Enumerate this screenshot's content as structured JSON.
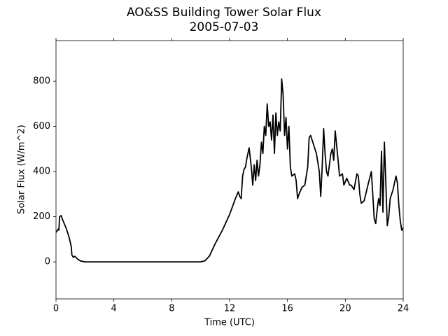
{
  "chart_data": {
    "type": "line",
    "title": "AO&SS Building Tower Solar Flux",
    "subtitle": "2005-07-03",
    "x_label": "Time (UTC)",
    "y_label": "Solar Flux (W/m^2)",
    "x": [
      0,
      0.1,
      0.15,
      0.2,
      0.25,
      0.35,
      0.5,
      0.7,
      0.9,
      1.05,
      1.1,
      1.2,
      1.3,
      1.5,
      1.7,
      2,
      4,
      6,
      8,
      10,
      10.3,
      10.6,
      11,
      11.5,
      12,
      12.4,
      12.6,
      12.7,
      12.8,
      12.9,
      13,
      13.1,
      13.2,
      13.35,
      13.5,
      13.6,
      13.7,
      13.8,
      13.9,
      14,
      14.1,
      14.2,
      14.3,
      14.4,
      14.5,
      14.6,
      14.7,
      14.8,
      14.9,
      15,
      15.1,
      15.2,
      15.3,
      15.4,
      15.5,
      15.6,
      15.7,
      15.8,
      15.9,
      16,
      16.1,
      16.2,
      16.3,
      16.5,
      16.6,
      16.7,
      16.8,
      17,
      17.2,
      17.4,
      17.5,
      17.6,
      17.8,
      18,
      18.2,
      18.3,
      18.4,
      18.5,
      18.6,
      18.7,
      18.8,
      19,
      19.1,
      19.2,
      19.3,
      19.5,
      19.6,
      19.8,
      19.9,
      20.1,
      20.3,
      20.4,
      20.6,
      20.8,
      20.9,
      21,
      21.1,
      21.3,
      21.6,
      21.8,
      22,
      22.1,
      22.2,
      22.3,
      22.4,
      22.5,
      22.6,
      22.7,
      22.8,
      22.9,
      23,
      23.1,
      23.3,
      23.5,
      23.6,
      23.7,
      23.8,
      23.9,
      24
    ],
    "series": [
      {
        "color": "#000000",
        "values": [
          130,
          140,
          145,
          140,
          200,
          205,
          180,
          150,
          110,
          70,
          30,
          20,
          25,
          12,
          4,
          0,
          0,
          0,
          0,
          0,
          5,
          25,
          80,
          140,
          210,
          280,
          310,
          290,
          280,
          380,
          410,
          420,
          460,
          505,
          420,
          340,
          430,
          360,
          450,
          380,
          430,
          530,
          480,
          600,
          560,
          700,
          600,
          620,
          540,
          650,
          480,
          660,
          560,
          620,
          580,
          810,
          740,
          560,
          640,
          500,
          600,
          420,
          380,
          390,
          360,
          280,
          300,
          330,
          340,
          420,
          550,
          560,
          520,
          480,
          400,
          290,
          420,
          590,
          480,
          400,
          380,
          480,
          500,
          450,
          580,
          450,
          380,
          390,
          340,
          370,
          340,
          340,
          320,
          390,
          380,
          300,
          260,
          270,
          350,
          400,
          190,
          170,
          230,
          280,
          250,
          490,
          220,
          530,
          350,
          160,
          200,
          280,
          320,
          380,
          350,
          250,
          180,
          140,
          150
        ]
      }
    ],
    "xlim": [
      0,
      24
    ],
    "xticks": [
      0,
      4,
      8,
      12,
      16,
      20,
      24
    ],
    "ylim": [
      -164,
      980
    ],
    "yticks": [
      0,
      200,
      400,
      600,
      800
    ]
  }
}
